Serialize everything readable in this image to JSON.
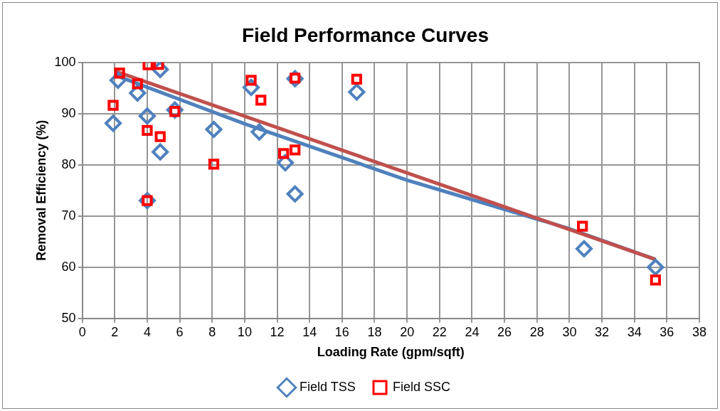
{
  "chart_data": {
    "type": "scatter",
    "title": "Field Performance Curves",
    "xlabel": "Loading Rate (gpm/sqft)",
    "ylabel": "Removal Efficiency (%)",
    "xlim": [
      0,
      38
    ],
    "xticks": [
      0,
      2,
      4,
      6,
      8,
      10,
      12,
      14,
      16,
      18,
      20,
      22,
      24,
      26,
      28,
      30,
      32,
      34,
      36,
      38
    ],
    "ylim": [
      50,
      100
    ],
    "yticks": [
      50,
      60,
      70,
      80,
      90,
      100
    ],
    "grid": true,
    "legend": "bottom",
    "series": [
      {
        "name": "Field TSS",
        "color": "#4f81bd",
        "marker": "diamond",
        "x": [
          1.9,
          2.2,
          3.4,
          4.0,
          4.0,
          4.8,
          4.8,
          5.7,
          8.1,
          10.4,
          10.9,
          12.5,
          13.1,
          13.1,
          16.9,
          30.9,
          35.3
        ],
        "values": [
          88.1,
          96.5,
          94,
          89.5,
          73,
          98.6,
          82.5,
          90.7,
          86.9,
          95.1,
          86.4,
          80.4,
          74.3,
          96.8,
          94.2,
          63.6,
          60
        ]
      },
      {
        "name": "Field SSC",
        "color": "#ff0000",
        "marker": "square",
        "x": [
          1.9,
          2.3,
          3.4,
          4.05,
          4.7,
          4.0,
          4.8,
          5.7,
          4.0,
          8.1,
          10.4,
          11.0,
          12.4,
          13.1,
          13.1,
          16.9,
          30.8,
          35.3
        ],
        "values": [
          91.6,
          97.9,
          95.8,
          99.5,
          99.6,
          86.7,
          85.5,
          90.4,
          73,
          80.1,
          96.5,
          92.6,
          82.2,
          82.9,
          96.9,
          96.7,
          68,
          57.5
        ]
      },
      {
        "type": "line",
        "color": "#4f81bd",
        "x": [
          2,
          10,
          20,
          30,
          35.3
        ],
        "values": [
          97.5,
          88,
          77,
          67.5,
          61.5
        ]
      },
      {
        "type": "line",
        "color": "#c0504d",
        "x": [
          2,
          35.3
        ],
        "values": [
          98.3,
          61.5
        ]
      }
    ]
  }
}
